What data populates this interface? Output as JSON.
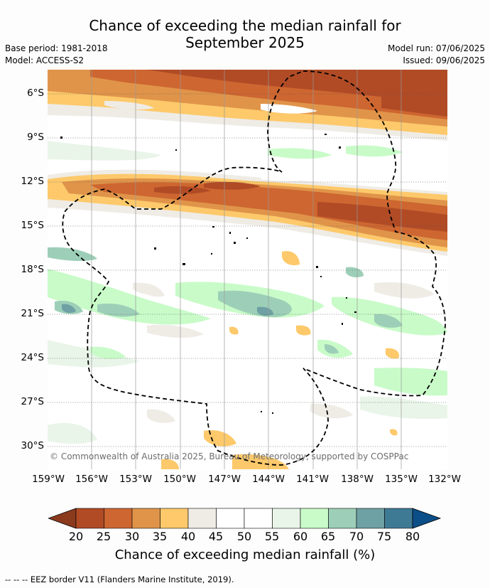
{
  "title_line1": "Chance of exceeding the median rainfall for",
  "title_line2": "September 2025",
  "base_period": "Base period: 1981-2018",
  "model": "Model: ACCESS-S2",
  "model_run": "Model run: 07/06/2025",
  "issued": "Issued: 09/06/2025",
  "copyright": "© Commonwealth of Australia 2025, Bureau of Meteorology, supported by COSPPac",
  "y_ticks": [
    "6°S",
    "9°S",
    "12°S",
    "15°S",
    "18°S",
    "21°S",
    "24°S",
    "27°S",
    "30°S"
  ],
  "x_ticks": [
    "159°W",
    "156°W",
    "153°W",
    "150°W",
    "147°W",
    "144°W",
    "141°W",
    "138°W",
    "135°W",
    "132°W"
  ],
  "colorbar": {
    "title": "Chance of exceeding median rainfall (%)",
    "labels": [
      "20",
      "25",
      "30",
      "35",
      "40",
      "45",
      "50",
      "55",
      "60",
      "65",
      "70",
      "75",
      "80"
    ],
    "colors": [
      "#8b3a1e",
      "#b04b26",
      "#cd6630",
      "#e0944a",
      "#fdc96b",
      "#efece6",
      "#ffffff",
      "#ffffff",
      "#e9f5e9",
      "#c8fbc8",
      "#9dcfb8",
      "#6ea1a4",
      "#3f7a95",
      "#0c4e87"
    ]
  },
  "footer": "--  --  -- EEZ border V11 (Flanders Marine Institute, 2019)."
}
